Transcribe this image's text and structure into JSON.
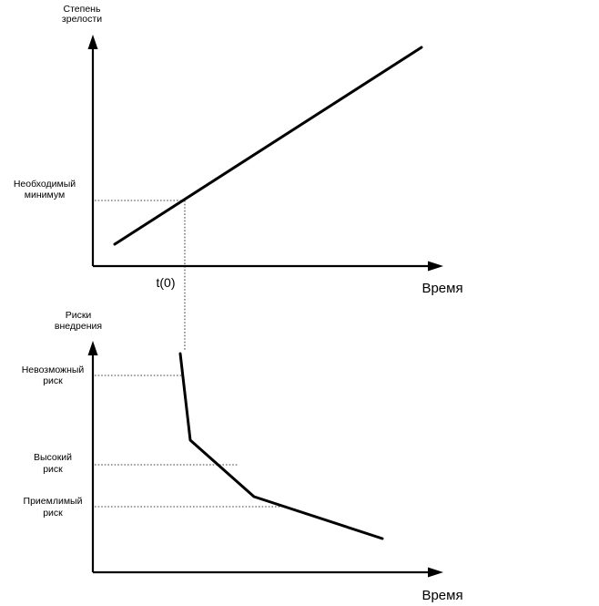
{
  "top_chart": {
    "y_axis_label_line1": "Степень",
    "y_axis_label_line2": "зрелости",
    "x_axis_label": "Время",
    "level_label_line1": "Необходимый",
    "level_label_line2": "минимум",
    "time_marker_label": "t(0)"
  },
  "bottom_chart": {
    "y_axis_label_line1": "Риски",
    "y_axis_label_line2": "внедрения",
    "x_axis_label": "Время",
    "levels": [
      {
        "line1": "Невозможный",
        "line2": "риск"
      },
      {
        "line1": "Высокий",
        "line2": "риск"
      },
      {
        "line1": "Приемлимый",
        "line2": "риск"
      }
    ]
  },
  "colors": {
    "ink": "#000000",
    "background": "#ffffff"
  }
}
